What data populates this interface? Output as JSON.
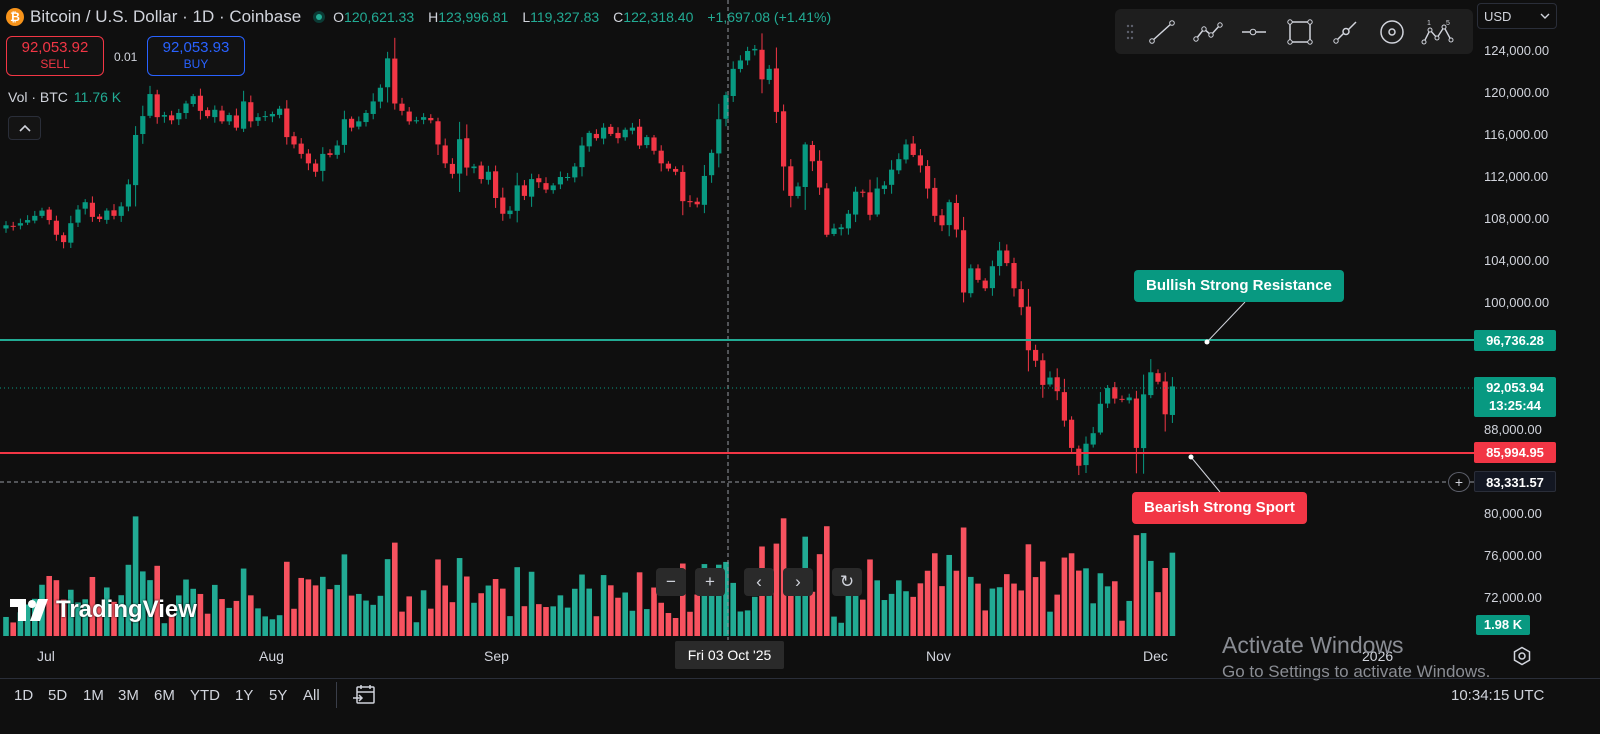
{
  "symbol": {
    "title": "Bitcoin / U.S. Dollar · 1D · Coinbase",
    "open_label": "O",
    "open": "120,621.33",
    "high_label": "H",
    "high": "123,996.81",
    "low_label": "L",
    "low": "119,327.83",
    "close_label": "C",
    "close": "122,318.40",
    "change": "+1,697.08 (+1.41%)",
    "logo_glyph": "₿"
  },
  "trade": {
    "sell_price": "92,053.92",
    "sell_label": "SELL",
    "buy_price": "92,053.93",
    "buy_label": "BUY",
    "spread": "0.01"
  },
  "volume_legend": {
    "label": "Vol · BTC",
    "value": "11.76 K"
  },
  "currency": {
    "selected": "USD"
  },
  "price_axis": {
    "ticks": [
      "124,000.00",
      "120,000.00",
      "116,000.00",
      "112,000.00",
      "108,000.00",
      "104,000.00",
      "100,000.00",
      "88,000.00",
      "80,000.00",
      "76,000.00",
      "72,000.00"
    ],
    "resistance": "96,736.28",
    "last_price": "92,053.94",
    "countdown": "13:25:44",
    "support": "85,994.95",
    "crosshair": "83,331.57",
    "volume_last": "1.98 K"
  },
  "annotations": {
    "resistance_note": "Bullish Strong Resistance",
    "support_note": "Bearish Strong Sport"
  },
  "time_axis": {
    "labels": [
      "Jul",
      "Aug",
      "Sep",
      "Nov",
      "Dec",
      "2026"
    ],
    "crosshair_date": "Fri 03 Oct '25"
  },
  "watermark": "TradingView",
  "zoom_controls": [
    "−",
    "+",
    "‹",
    "›",
    "↻"
  ],
  "drawing_tools": [
    {
      "name": "trend-line-icon"
    },
    {
      "name": "path-icon"
    },
    {
      "name": "horizontal-ray-icon"
    },
    {
      "name": "rectangle-icon"
    },
    {
      "name": "brush-icon"
    },
    {
      "name": "circle-icon"
    },
    {
      "name": "xabcd-pattern-icon"
    }
  ],
  "ranges": [
    "1D",
    "5D",
    "1M",
    "3M",
    "6M",
    "YTD",
    "1Y",
    "5Y",
    "All"
  ],
  "clock": "10:34:15 UTC",
  "os_overlay": {
    "line1": "Activate Windows",
    "line2": "Go to Settings to activate Windows."
  },
  "colors": {
    "up": "#089981",
    "down": "#f23645",
    "vol_up": "#22ab94",
    "vol_down": "#f7525f",
    "background": "#0f0f0f"
  },
  "chart_data": {
    "type": "candlestick",
    "period": "1D",
    "x_range": [
      "2025-06-21",
      "2025-12-08"
    ],
    "y_range": [
      70000,
      126000
    ],
    "grid": false,
    "horizontal_lines": [
      {
        "price": 96736.28,
        "color": "#089981",
        "label": "Bullish Strong Resistance"
      },
      {
        "price": 85994.95,
        "color": "#f23645",
        "label": "Bearish Strong Sport"
      }
    ],
    "crosshair": {
      "price": 83331.57,
      "date": "Fri 03 Oct '25"
    },
    "close": [
      107400,
      107300,
      107600,
      107900,
      108300,
      108800,
      107900,
      106500,
      105800,
      107600,
      108900,
      109600,
      108200,
      108000,
      108800,
      108300,
      109200,
      111300,
      116000,
      117800,
      119900,
      117700,
      117900,
      117400,
      118100,
      119000,
      119700,
      118300,
      117800,
      118400,
      117300,
      117900,
      116700,
      119200,
      117300,
      117700,
      117800,
      118000,
      118500,
      115800,
      115100,
      114200,
      113300,
      112500,
      114200,
      114100,
      115000,
      117500,
      116700,
      117300,
      118100,
      119200,
      120500,
      123300,
      119000,
      118300,
      117300,
      117400,
      117700,
      117400,
      115100,
      113300,
      112300,
      115600,
      112900,
      113000,
      111800,
      112500,
      110000,
      108500,
      108800,
      111200,
      110200,
      111800,
      111500,
      110800,
      111200,
      112000,
      112000,
      113000,
      115000,
      116200,
      115700,
      116700,
      116100,
      115700,
      116500,
      116700,
      115000,
      115800,
      114500,
      113300,
      112800,
      112500,
      109700,
      109600,
      109400,
      112100,
      114300,
      117500,
      119800,
      122300,
      123100,
      124000,
      124200,
      121300,
      122300,
      118200,
      113000,
      110200,
      111100,
      115100,
      113500,
      111000,
      106500,
      107100,
      107200,
      108500,
      110600,
      110500,
      108400,
      110900,
      111200,
      112700,
      113700,
      115100,
      114100,
      113100,
      110900,
      108300,
      107400,
      109600,
      107000,
      101000,
      103300,
      102200,
      101400,
      103500,
      105000,
      103800,
      101400,
      99600,
      95500,
      94500,
      92200,
      92900,
      91600,
      88800,
      86200,
      84500,
      86600,
      87600,
      90400,
      91900,
      90900,
      90800,
      91000,
      86200,
      91300,
      93400,
      92500,
      89400,
      92054
    ]
  }
}
